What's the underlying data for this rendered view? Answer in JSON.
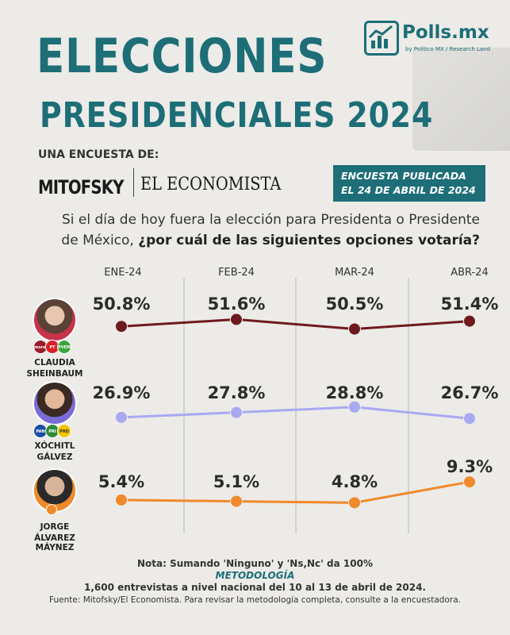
{
  "header": {
    "title_line1": "ELECCIONES",
    "title_line2": "PRESIDENCIALES 2024",
    "brand_name": "Polls.mx",
    "brand_sub": "by Politico MX / Research Land",
    "survey_by": "UNA ENCUESTA DE:",
    "logo_mitofsky": "MITOFSKY",
    "logo_economista": "EL ECONOMISTA",
    "pub_line1": "ENCUESTA PUBLICADA",
    "pub_line2": "EL 24 DE ABRIL DE 2024"
  },
  "question": {
    "part1": "Si el día de hoy fuera la elección para Presidenta o Presidente",
    "part2": "de México, ",
    "part3_bold": "¿por cuál de las siguientes opciones votaría?"
  },
  "candidates": [
    {
      "line1": "CLAUDIA",
      "line2": "SHEINBAUM",
      "badges": [
        "morena",
        "PT",
        "PVEM"
      ]
    },
    {
      "line1": "XÓCHITL",
      "line2": "GÁLVEZ",
      "badges": [
        "PAN",
        "PRI",
        "PRD"
      ]
    },
    {
      "line1": "JORGE",
      "line2": "ÁLVAREZ MÁYNEZ",
      "badges": []
    }
  ],
  "chart_data": {
    "type": "line",
    "categories": [
      "ENE-24",
      "FEB-24",
      "MAR-24",
      "ABR-24"
    ],
    "series": [
      {
        "name": "CLAUDIA SHEINBAUM",
        "values": [
          50.8,
          51.6,
          50.5,
          51.4
        ],
        "labels": [
          "50.8%",
          "51.6%",
          "50.5%",
          "51.4%"
        ],
        "color": "#6e1a1f"
      },
      {
        "name": "XÓCHITL GÁLVEZ",
        "values": [
          26.9,
          27.8,
          28.8,
          26.7
        ],
        "labels": [
          "26.9%",
          "27.8%",
          "28.8%",
          "26.7%"
        ],
        "color": "#a9a9f2"
      },
      {
        "name": "JORGE ÁLVAREZ MÁYNEZ",
        "values": [
          5.4,
          5.1,
          4.8,
          9.3
        ],
        "labels": [
          "5.4%",
          "5.1%",
          "4.8%",
          "9.3%"
        ],
        "color": "#f0892a"
      }
    ],
    "grid": "vertical"
  },
  "footer": {
    "note": "Nota: Sumando 'Ninguno' y 'Ns,Nc' da 100%",
    "method_title": "METODOLOGÍA",
    "method": "1,600 entrevistas a nivel nacional del 10 al 13 de abril de 2024.",
    "source": "Fuente: Mitofsky/El Economista. Para revisar la metodología completa, consulte a la encuestadora."
  }
}
